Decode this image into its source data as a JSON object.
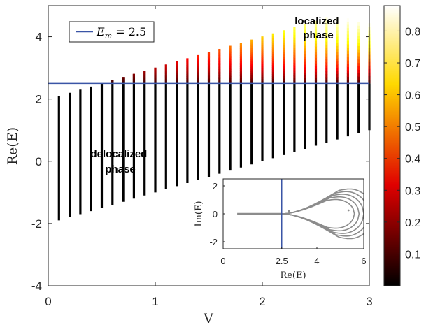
{
  "chart_data": {
    "main": {
      "type": "scatter",
      "xlabel": "V",
      "ylabel": "Re(E)",
      "xlim": [
        0,
        3
      ],
      "ylim": [
        -4,
        5
      ],
      "xticks": [
        "0",
        "1",
        "2",
        "3"
      ],
      "yticks": [
        "-4",
        "-2",
        "0",
        "2",
        "4"
      ],
      "threshold_line": {
        "y": 2.5,
        "color": "#3a55a6",
        "legend": "E_m = 2.5"
      },
      "legend": {
        "label": "E_m = 2.5",
        "prefix": "E",
        "subscript": "m",
        "suffix": " = 2.5",
        "placement": "top-left"
      },
      "annotations": [
        {
          "lines": [
            "localized",
            "phase"
          ],
          "x": 2.7,
          "y": 4.3
        },
        {
          "lines": [
            "delocalized",
            "phase"
          ],
          "x": 0.68,
          "y": 0.0
        }
      ],
      "columns": [
        {
          "V": 0.1,
          "min": -1.9,
          "max": 2.1
        },
        {
          "V": 0.2,
          "min": -1.8,
          "max": 2.2
        },
        {
          "V": 0.3,
          "min": -1.7,
          "max": 2.3
        },
        {
          "V": 0.4,
          "min": -1.6,
          "max": 2.4
        },
        {
          "V": 0.5,
          "min": -1.5,
          "max": 2.5
        },
        {
          "V": 0.6,
          "min": -1.4,
          "max": 2.6
        },
        {
          "V": 0.7,
          "min": -1.3,
          "max": 2.7
        },
        {
          "V": 0.8,
          "min": -1.2,
          "max": 2.8
        },
        {
          "V": 0.9,
          "min": -1.1,
          "max": 2.9
        },
        {
          "V": 1.0,
          "min": -1.0,
          "max": 3.0
        },
        {
          "V": 1.1,
          "min": -0.9,
          "max": 3.1
        },
        {
          "V": 1.2,
          "min": -0.8,
          "max": 3.2
        },
        {
          "V": 1.3,
          "min": -0.7,
          "max": 3.3
        },
        {
          "V": 1.4,
          "min": -0.6,
          "max": 3.4
        },
        {
          "V": 1.5,
          "min": -0.5,
          "max": 3.5
        },
        {
          "V": 1.6,
          "min": -0.4,
          "max": 3.6
        },
        {
          "V": 1.7,
          "min": -0.3,
          "max": 3.7
        },
        {
          "V": 1.8,
          "min": -0.2,
          "max": 3.8
        },
        {
          "V": 1.9,
          "min": -0.1,
          "max": 3.9
        },
        {
          "V": 2.0,
          "min": 0.0,
          "max": 4.0
        },
        {
          "V": 2.1,
          "min": 0.1,
          "max": 4.1
        },
        {
          "V": 2.2,
          "min": 0.2,
          "max": 4.2
        },
        {
          "V": 2.3,
          "min": 0.3,
          "max": 4.3
        },
        {
          "V": 2.4,
          "min": 0.4,
          "max": 4.4
        },
        {
          "V": 2.5,
          "min": 0.5,
          "max": 4.5
        },
        {
          "V": 2.6,
          "min": 0.6,
          "max": 4.6
        },
        {
          "V": 2.7,
          "min": 0.7,
          "max": 4.7
        },
        {
          "V": 2.8,
          "min": 0.8,
          "max": 4.8
        },
        {
          "V": 2.9,
          "min": 0.9,
          "max": 4.9
        },
        {
          "V": 3.0,
          "min": 1.0,
          "max": 5.0
        }
      ],
      "color_rule": "points with Re(E) below E_m are delocalized (value ~0, black); above E_m colored by value rising with energy and V"
    },
    "colorbar": {
      "range": [
        0,
        0.88
      ],
      "ticks": [
        "0.1",
        "0.2",
        "0.3",
        "0.4",
        "0.5",
        "0.6",
        "0.7",
        "0.8"
      ],
      "colormap": "hot"
    },
    "inset": {
      "type": "scatter",
      "xlabel": "Re(E)",
      "ylabel": "Im(E)",
      "xlim": [
        0,
        6
      ],
      "ylim": [
        -2.5,
        2.5
      ],
      "xticks": [
        "0",
        "2.5",
        "4",
        "6"
      ],
      "yticks": [
        "-2",
        "0",
        "2"
      ],
      "vline": {
        "x": 2.5,
        "color": "#3a55a6"
      },
      "series_color": "#8c8c8c",
      "real_segment": [
        0.6,
        2.5
      ],
      "loops": [
        {
          "x_right": 5.6,
          "half_height": 1.1
        },
        {
          "x_right": 5.8,
          "half_height": 1.3
        },
        {
          "x_right": 6.0,
          "half_height": 1.5
        },
        {
          "x_right": 6.2,
          "half_height": 1.7
        },
        {
          "x_right": 6.4,
          "half_height": 1.9
        }
      ]
    }
  }
}
